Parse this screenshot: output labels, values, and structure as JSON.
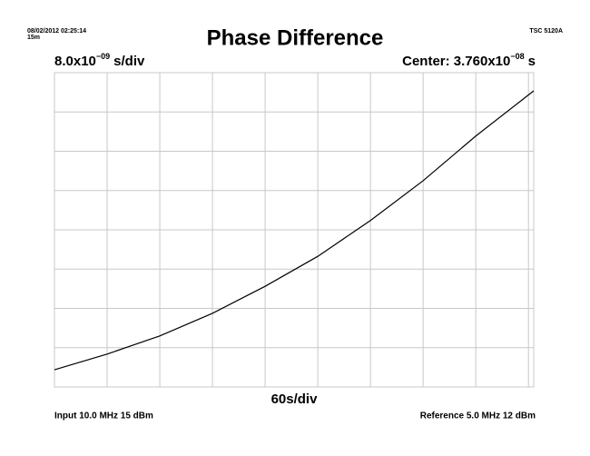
{
  "chart_data": {
    "type": "line",
    "title": "Phase Difference",
    "timestamp": "08/02/2012 02:25:14",
    "duration": "15m",
    "instrument": "TSC 5120A",
    "y_scale": [
      "8.0x10",
      "−09",
      "s/div"
    ],
    "center": [
      "Center: 3.760x10",
      "−08",
      "s"
    ],
    "x_scale": "60s/div",
    "input": "Input 10.0 MHz 15 dBm",
    "reference": "Reference 5.0 MHz 12 dBm",
    "x": [
      0,
      60,
      120,
      180,
      240,
      300,
      360,
      420,
      480,
      546
    ],
    "series": [
      {
        "color": "#000000",
        "values": [
          9.1e-09,
          1.23e-08,
          1.6e-08,
          2.06e-08,
          2.61e-08,
          3.22e-08,
          3.95e-08,
          4.76e-08,
          5.67e-08,
          6.59e-08
        ]
      }
    ],
    "xlim": [
      0,
      546
    ],
    "xticks": [
      0,
      60,
      120,
      180,
      240,
      300,
      360,
      420,
      480,
      540
    ],
    "ylim": [
      5.6e-09,
      6.96e-08
    ],
    "yticks": [
      5.6e-09,
      1.36e-08,
      2.16e-08,
      2.96e-08,
      3.76e-08,
      4.56e-08,
      5.36e-08,
      6.16e-08,
      6.96e-08
    ],
    "grid": true
  }
}
